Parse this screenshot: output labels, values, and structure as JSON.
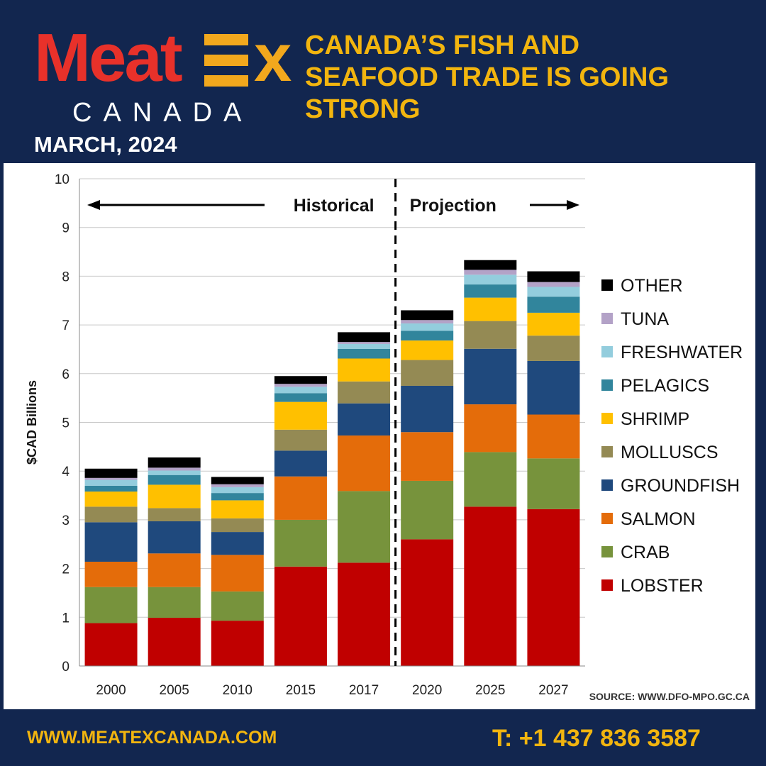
{
  "brand": {
    "logo_text": "MeatEx",
    "logo_sub": "CANADA",
    "date": "MARCH, 2024",
    "colors": {
      "red": "#e8312a",
      "orange": "#f2a81d",
      "navy": "#12264f",
      "headline": "#f2b50f"
    }
  },
  "headline": {
    "lines": [
      "CANADA’S FISH AND",
      "SEAFOOD TRADE IS GOING",
      "STRONG"
    ]
  },
  "chart_data": {
    "type": "bar",
    "stacked": true,
    "title": "",
    "xlabel": "",
    "ylabel": "$CAD Billions",
    "ylim": [
      0,
      10
    ],
    "yticks": [
      0,
      1,
      2,
      3,
      4,
      5,
      6,
      7,
      8,
      9,
      10
    ],
    "grid": true,
    "legend_position": "right",
    "categories": [
      "2000",
      "2005",
      "2010",
      "2015",
      "2017",
      "2020",
      "2025",
      "2027"
    ],
    "annotations": {
      "historical_label": "Historical",
      "projection_label": "Projection",
      "divider_between": [
        "2017",
        "2020"
      ]
    },
    "series": [
      {
        "name": "LOBSTER",
        "color": "#c00000",
        "values": [
          0.88,
          0.99,
          0.93,
          2.04,
          2.12,
          2.6,
          3.27,
          3.22
        ]
      },
      {
        "name": "CRAB",
        "color": "#77933c",
        "values": [
          0.74,
          0.63,
          0.6,
          0.96,
          1.47,
          1.2,
          1.12,
          1.04
        ]
      },
      {
        "name": "SALMON",
        "color": "#e46c0a",
        "values": [
          0.52,
          0.69,
          0.75,
          0.89,
          1.14,
          1.0,
          0.98,
          0.9
        ]
      },
      {
        "name": "GROUNDFISH",
        "color": "#1f497d",
        "values": [
          0.81,
          0.66,
          0.47,
          0.53,
          0.66,
          0.95,
          1.14,
          1.1
        ]
      },
      {
        "name": "MOLLUSCS",
        "color": "#948a54",
        "values": [
          0.32,
          0.27,
          0.28,
          0.43,
          0.45,
          0.53,
          0.57,
          0.52
        ]
      },
      {
        "name": "SHRIMP",
        "color": "#ffc000",
        "values": [
          0.31,
          0.48,
          0.37,
          0.57,
          0.47,
          0.4,
          0.48,
          0.47
        ]
      },
      {
        "name": "PELAGICS",
        "color": "#31859c",
        "values": [
          0.12,
          0.2,
          0.15,
          0.18,
          0.2,
          0.2,
          0.27,
          0.33
        ]
      },
      {
        "name": "FRESHWATER",
        "color": "#93cddd",
        "values": [
          0.12,
          0.09,
          0.12,
          0.13,
          0.1,
          0.15,
          0.2,
          0.2
        ]
      },
      {
        "name": "TUNA",
        "color": "#b3a2c7",
        "values": [
          0.04,
          0.06,
          0.06,
          0.06,
          0.04,
          0.07,
          0.1,
          0.1
        ]
      },
      {
        "name": "OTHER",
        "color": "#000000",
        "values": [
          0.19,
          0.21,
          0.15,
          0.16,
          0.2,
          0.2,
          0.2,
          0.22
        ]
      }
    ],
    "source": "SOURCE: WWW.DFO-MPO.GC.CA"
  },
  "footer": {
    "url": "WWW.MEATEXCANADA.COM",
    "phone": "T: +1 437 836 3587"
  }
}
